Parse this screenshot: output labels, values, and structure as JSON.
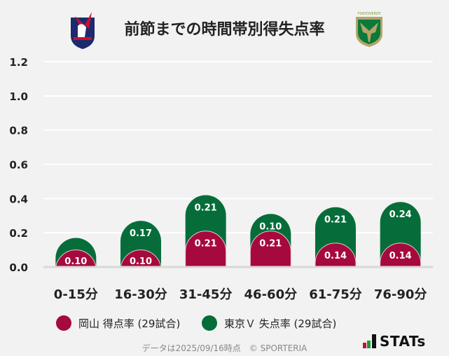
{
  "header": {
    "title": "前節までの時間帯別得失点率",
    "left_logo": "Fagiano Okayama",
    "right_logo": "TOKYO VERDY"
  },
  "chart_data": {
    "type": "bar",
    "stacked": true,
    "title": "前節までの時間帯別得失点率",
    "categories": [
      "0-15分",
      "16-30分",
      "31-45分",
      "46-60分",
      "61-75分",
      "76-90分"
    ],
    "series": [
      {
        "name": "岡山 得点率 (29試合)",
        "color": "#a6093d",
        "values": [
          0.1,
          0.1,
          0.21,
          0.21,
          0.14,
          0.14
        ]
      },
      {
        "name": "東京Ｖ 失点率 (29試合)",
        "color": "#066d3a",
        "values": [
          0.07,
          0.17,
          0.21,
          0.1,
          0.21,
          0.24
        ]
      }
    ],
    "ylim": [
      0,
      1.2
    ],
    "yticks": [
      "0.0",
      "0.2",
      "0.4",
      "0.6",
      "0.8",
      "1.0",
      "1.2"
    ],
    "grid": true,
    "legend": "bottom"
  },
  "footer": {
    "note": "データは2025/09/16時点　© SPORTERIA",
    "brand": "STATs"
  }
}
